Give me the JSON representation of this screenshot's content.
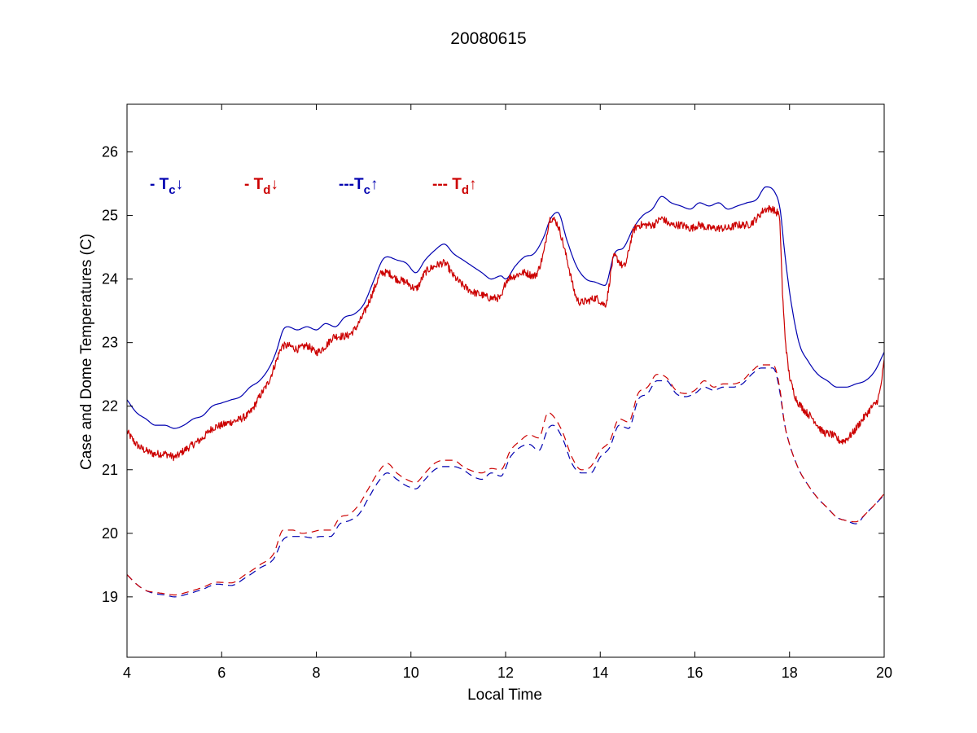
{
  "chart_data": {
    "type": "line",
    "title": "20080615",
    "xlabel": "Local Time",
    "ylabel": "Case and Dome Temperatures (C)",
    "xlim": [
      4,
      20
    ],
    "ylim": [
      18.05,
      26.75
    ],
    "xticks": [
      4,
      6,
      8,
      10,
      12,
      14,
      16,
      18,
      20
    ],
    "yticks": [
      19,
      20,
      21,
      22,
      23,
      24,
      25,
      26
    ],
    "grid": false,
    "legend_position": "top-left",
    "legend": [
      {
        "prefix": "- T",
        "sub": "c",
        "arrow": "↓",
        "color": "#0000b0"
      },
      {
        "prefix": "- T",
        "sub": "d",
        "arrow": "↓",
        "color": "#cc0000"
      },
      {
        "prefix": "---T",
        "sub": "c",
        "arrow": "↑",
        "color": "#0000b0"
      },
      {
        "prefix": "--- T",
        "sub": "d",
        "arrow": "↑",
        "color": "#cc0000"
      }
    ],
    "series": [
      {
        "color": "#0000b0",
        "dash": "none",
        "noise": 0,
        "x": [
          4.0,
          4.2,
          4.4,
          4.6,
          4.8,
          5.0,
          5.2,
          5.4,
          5.6,
          5.8,
          6.0,
          6.2,
          6.4,
          6.6,
          6.8,
          7.0,
          7.15,
          7.3,
          7.4,
          7.6,
          7.8,
          8.0,
          8.2,
          8.4,
          8.6,
          8.8,
          9.0,
          9.2,
          9.4,
          9.5,
          9.7,
          9.9,
          10.1,
          10.3,
          10.5,
          10.7,
          10.9,
          11.1,
          11.3,
          11.5,
          11.7,
          11.9,
          12.0,
          12.2,
          12.4,
          12.6,
          12.8,
          12.95,
          13.1,
          13.3,
          13.5,
          13.7,
          13.9,
          14.1,
          14.3,
          14.5,
          14.7,
          14.9,
          15.1,
          15.3,
          15.5,
          15.7,
          15.9,
          16.1,
          16.3,
          16.5,
          16.7,
          16.9,
          17.1,
          17.3,
          17.5,
          17.7,
          17.8,
          17.9,
          18.0,
          18.2,
          18.4,
          18.6,
          18.8,
          19.0,
          19.2,
          19.4,
          19.6,
          19.8,
          20.0
        ],
        "y": [
          22.1,
          21.9,
          21.8,
          21.7,
          21.7,
          21.65,
          21.7,
          21.8,
          21.85,
          22.0,
          22.05,
          22.1,
          22.15,
          22.3,
          22.4,
          22.6,
          22.85,
          23.2,
          23.25,
          23.2,
          23.25,
          23.2,
          23.3,
          23.25,
          23.4,
          23.45,
          23.6,
          23.95,
          24.3,
          24.35,
          24.3,
          24.25,
          24.1,
          24.3,
          24.45,
          24.55,
          24.4,
          24.3,
          24.2,
          24.1,
          24.0,
          24.05,
          24.0,
          24.2,
          24.35,
          24.4,
          24.65,
          24.95,
          25.05,
          24.6,
          24.2,
          24.0,
          23.95,
          23.9,
          24.4,
          24.5,
          24.8,
          25.0,
          25.1,
          25.3,
          25.2,
          25.15,
          25.1,
          25.2,
          25.15,
          25.2,
          25.1,
          25.15,
          25.2,
          25.25,
          25.45,
          25.35,
          25.1,
          24.4,
          23.8,
          23.0,
          22.7,
          22.5,
          22.4,
          22.3,
          22.3,
          22.35,
          22.4,
          22.55,
          22.85
        ]
      },
      {
        "color": "#cc0000",
        "dash": "none",
        "noise": 0.06,
        "x": [
          4.0,
          4.2,
          4.4,
          4.6,
          4.8,
          5.0,
          5.2,
          5.4,
          5.6,
          5.8,
          6.0,
          6.2,
          6.4,
          6.6,
          6.8,
          7.0,
          7.15,
          7.3,
          7.4,
          7.6,
          7.8,
          8.0,
          8.2,
          8.4,
          8.6,
          8.8,
          9.0,
          9.2,
          9.4,
          9.5,
          9.7,
          9.9,
          10.1,
          10.3,
          10.5,
          10.7,
          10.9,
          11.1,
          11.3,
          11.5,
          11.7,
          11.9,
          12.0,
          12.2,
          12.4,
          12.6,
          12.8,
          12.95,
          13.1,
          13.3,
          13.5,
          13.7,
          13.9,
          14.1,
          14.3,
          14.5,
          14.7,
          14.9,
          15.1,
          15.3,
          15.5,
          15.7,
          15.9,
          16.1,
          16.3,
          16.5,
          16.7,
          16.9,
          17.1,
          17.3,
          17.5,
          17.7,
          17.8,
          17.85,
          17.95,
          18.1,
          18.3,
          18.5,
          18.7,
          18.9,
          19.1,
          19.3,
          19.5,
          19.7,
          19.9,
          20.0
        ],
        "y": [
          21.6,
          21.4,
          21.3,
          21.25,
          21.25,
          21.2,
          21.3,
          21.4,
          21.5,
          21.65,
          21.7,
          21.75,
          21.8,
          21.9,
          22.15,
          22.4,
          22.7,
          22.95,
          22.95,
          22.9,
          22.95,
          22.85,
          22.95,
          23.1,
          23.1,
          23.2,
          23.45,
          23.8,
          24.1,
          24.1,
          24.0,
          23.95,
          23.85,
          24.1,
          24.2,
          24.25,
          24.05,
          23.9,
          23.8,
          23.75,
          23.7,
          23.7,
          23.95,
          24.05,
          24.1,
          24.05,
          24.4,
          24.95,
          24.85,
          24.3,
          23.7,
          23.65,
          23.7,
          23.6,
          24.35,
          24.2,
          24.75,
          24.85,
          24.85,
          24.95,
          24.85,
          24.85,
          24.8,
          24.85,
          24.8,
          24.8,
          24.8,
          24.85,
          24.85,
          24.95,
          25.1,
          25.05,
          24.8,
          23.8,
          22.75,
          22.2,
          21.95,
          21.8,
          21.6,
          21.55,
          21.45,
          21.55,
          21.75,
          21.95,
          22.2,
          22.7
        ]
      },
      {
        "color": "#0000b0",
        "dash": "9,6",
        "noise": 0,
        "x": [
          4.0,
          4.2,
          4.4,
          4.6,
          4.8,
          5.0,
          5.3,
          5.6,
          5.9,
          6.2,
          6.5,
          6.8,
          7.1,
          7.3,
          7.5,
          7.7,
          7.9,
          8.1,
          8.3,
          8.5,
          8.7,
          8.9,
          9.1,
          9.3,
          9.5,
          9.7,
          9.9,
          10.1,
          10.3,
          10.5,
          10.7,
          10.9,
          11.1,
          11.3,
          11.5,
          11.7,
          11.9,
          12.1,
          12.3,
          12.5,
          12.7,
          12.9,
          13.0,
          13.2,
          13.4,
          13.6,
          13.8,
          14.0,
          14.2,
          14.4,
          14.6,
          14.8,
          15.0,
          15.2,
          15.4,
          15.6,
          15.8,
          16.0,
          16.2,
          16.4,
          16.6,
          16.8,
          17.0,
          17.2,
          17.4,
          17.6,
          17.7,
          17.8,
          17.9,
          18.0,
          18.2,
          18.4,
          18.6,
          18.8,
          19.0,
          19.2,
          19.4,
          19.6,
          19.8,
          20.0
        ],
        "y": [
          19.35,
          19.2,
          19.1,
          19.05,
          19.03,
          19.0,
          19.05,
          19.12,
          19.2,
          19.18,
          19.3,
          19.45,
          19.6,
          19.9,
          19.95,
          19.95,
          19.93,
          19.95,
          19.95,
          20.15,
          20.2,
          20.3,
          20.55,
          20.8,
          20.95,
          20.85,
          20.75,
          20.7,
          20.85,
          21.0,
          21.05,
          21.05,
          21.0,
          20.9,
          20.85,
          20.95,
          20.9,
          21.2,
          21.35,
          21.4,
          21.3,
          21.65,
          21.7,
          21.5,
          21.1,
          20.95,
          20.95,
          21.2,
          21.35,
          21.7,
          21.65,
          22.1,
          22.2,
          22.4,
          22.4,
          22.2,
          22.15,
          22.2,
          22.3,
          22.25,
          22.3,
          22.3,
          22.35,
          22.5,
          22.6,
          22.6,
          22.55,
          22.2,
          21.7,
          21.4,
          21.0,
          20.75,
          20.55,
          20.4,
          20.25,
          20.2,
          20.15,
          20.3,
          20.45,
          20.6
        ]
      },
      {
        "color": "#cc0000",
        "dash": "9,6",
        "noise": 0,
        "x": [
          4.0,
          4.2,
          4.4,
          4.6,
          4.8,
          5.0,
          5.3,
          5.6,
          5.9,
          6.2,
          6.5,
          6.8,
          7.1,
          7.3,
          7.5,
          7.7,
          7.9,
          8.1,
          8.3,
          8.5,
          8.7,
          8.9,
          9.1,
          9.3,
          9.5,
          9.7,
          9.9,
          10.1,
          10.3,
          10.5,
          10.7,
          10.9,
          11.1,
          11.3,
          11.5,
          11.7,
          11.9,
          12.1,
          12.3,
          12.5,
          12.7,
          12.9,
          13.0,
          13.2,
          13.4,
          13.6,
          13.8,
          14.0,
          14.2,
          14.4,
          14.6,
          14.8,
          15.0,
          15.2,
          15.4,
          15.6,
          15.8,
          16.0,
          16.2,
          16.4,
          16.6,
          16.8,
          17.0,
          17.2,
          17.4,
          17.6,
          17.7,
          17.8,
          17.9,
          18.0,
          18.2,
          18.4,
          18.6,
          18.8,
          19.0,
          19.2,
          19.4,
          19.6,
          19.8,
          20.0
        ],
        "y": [
          19.35,
          19.2,
          19.1,
          19.07,
          19.05,
          19.03,
          19.08,
          19.15,
          19.23,
          19.22,
          19.35,
          19.5,
          19.68,
          20.05,
          20.05,
          20.0,
          20.02,
          20.05,
          20.05,
          20.25,
          20.3,
          20.45,
          20.7,
          20.95,
          21.1,
          20.95,
          20.85,
          20.8,
          20.95,
          21.1,
          21.15,
          21.15,
          21.05,
          20.98,
          20.95,
          21.02,
          21.0,
          21.3,
          21.45,
          21.55,
          21.5,
          21.9,
          21.85,
          21.6,
          21.2,
          21.0,
          21.05,
          21.3,
          21.45,
          21.8,
          21.75,
          22.2,
          22.3,
          22.5,
          22.45,
          22.25,
          22.2,
          22.25,
          22.4,
          22.3,
          22.35,
          22.35,
          22.4,
          22.55,
          22.65,
          22.65,
          22.6,
          22.25,
          21.7,
          21.4,
          21.0,
          20.75,
          20.55,
          20.4,
          20.25,
          20.2,
          20.18,
          20.3,
          20.45,
          20.62
        ]
      }
    ]
  }
}
